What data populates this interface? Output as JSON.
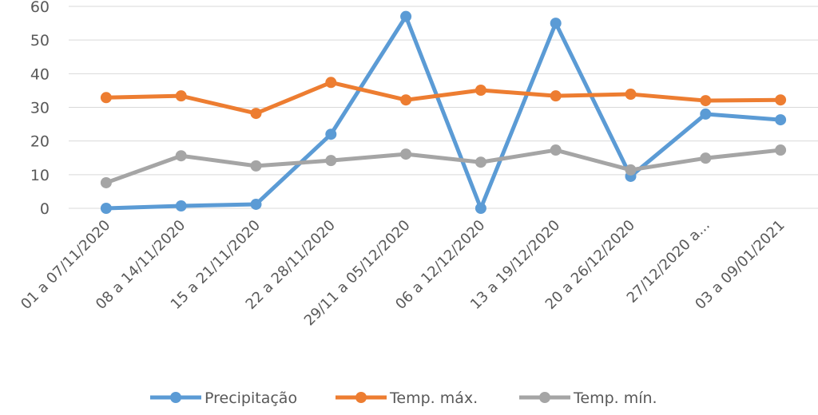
{
  "chart_data": {
    "type": "line",
    "title": "",
    "xlabel": "",
    "ylabel": "",
    "ylim": [
      0,
      60
    ],
    "yticks": [
      0,
      10,
      20,
      30,
      40,
      50,
      60
    ],
    "grid": true,
    "legend_position": "bottom",
    "categories": [
      "01 a 07/11/2020",
      "08 a 14/11/2020",
      "15 a 21/11/2020",
      "22 a 28/11/2020",
      "29/11 a 05/12/2020",
      "06 a 12/12/2020",
      "13 a 19/12/2020",
      "20 a 26/12/2020",
      "27/12/2020 a...",
      "03 a 09/01/2021"
    ],
    "series": [
      {
        "name": "Precipitação",
        "color": "#5B9BD5",
        "values": [
          0,
          0.7,
          1.2,
          22,
          57,
          0,
          55,
          9.5,
          28,
          26.3
        ]
      },
      {
        "name": "Temp. máx.",
        "color": "#ED7D31",
        "values": [
          32.9,
          33.4,
          28.2,
          37.4,
          32.2,
          35.1,
          33.4,
          33.9,
          32,
          32.2
        ]
      },
      {
        "name": "Temp. mín.",
        "color": "#A5A5A5",
        "values": [
          7.6,
          15.6,
          12.6,
          14.2,
          16.1,
          13.7,
          17.3,
          11.4,
          14.9,
          17.3
        ]
      }
    ]
  }
}
